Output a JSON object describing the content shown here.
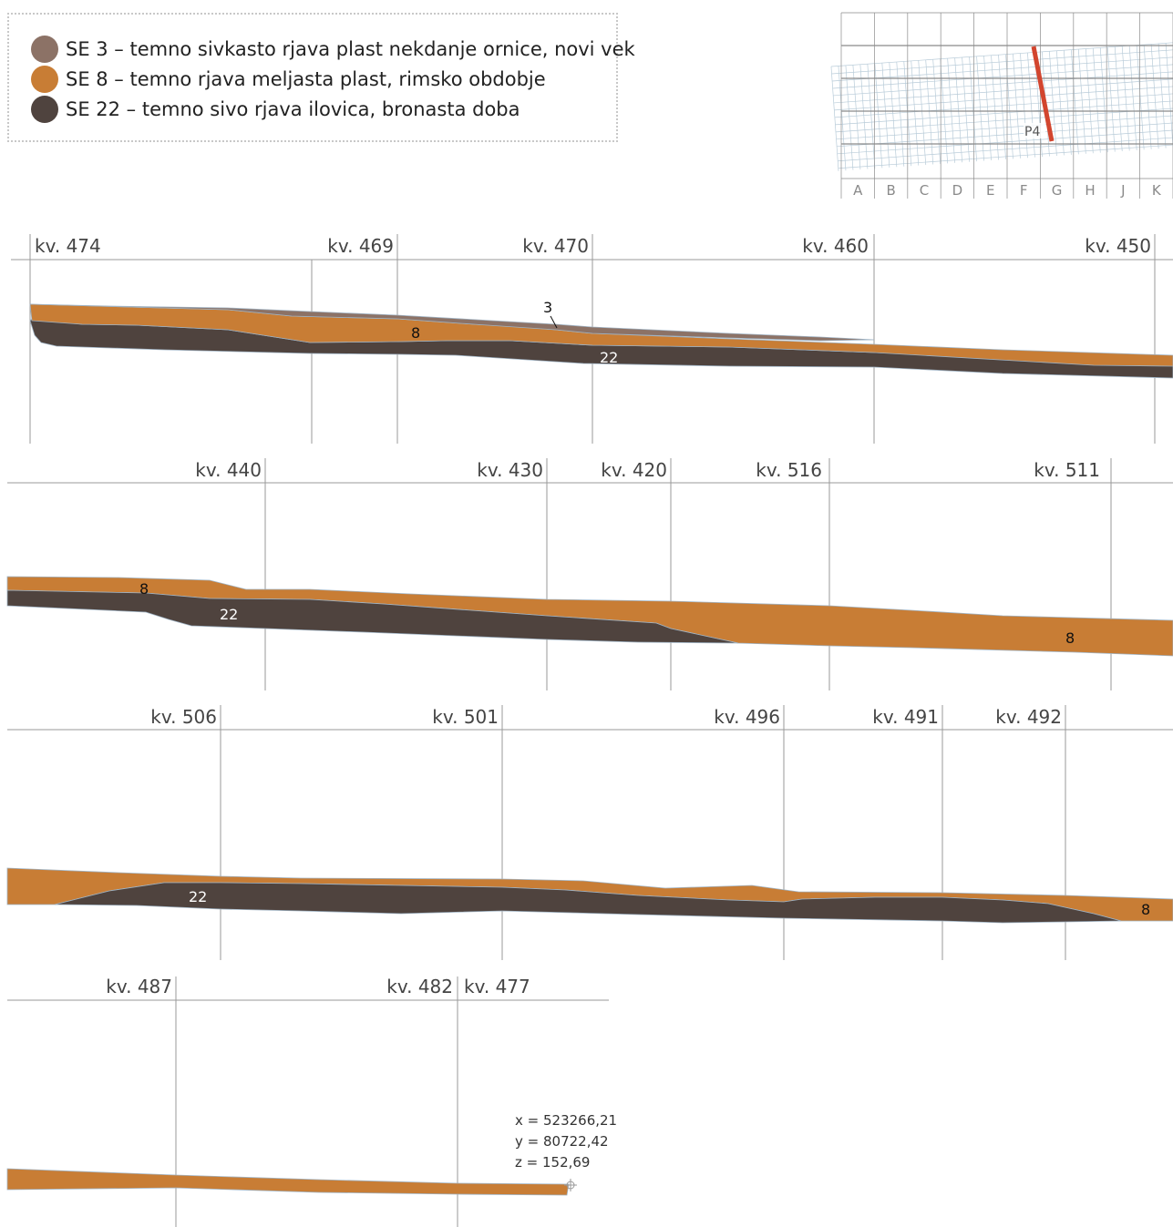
{
  "legend": [
    {
      "label": "SE 3 – temno sivkasto rjava plast nekdanje ornice, novi vek",
      "color": "#8c7266"
    },
    {
      "label": "SE 8 – temno rjava meljasta plast, rimsko obdobje",
      "color": "#c87d35"
    },
    {
      "label": "SE 22 – temno sivo rjava ilovica, bronasta doba",
      "color": "#4f433e"
    }
  ],
  "locator": {
    "columns": [
      "A",
      "B",
      "C",
      "D",
      "E",
      "F",
      "G",
      "H",
      "J",
      "K"
    ],
    "profile_label": "P4",
    "profile_color": "#d2452e"
  },
  "profile": {
    "row1_squares": [
      "kv. 474",
      "kv. 469",
      "kv. 470",
      "kv. 460",
      "kv. 450"
    ],
    "row2_squares": [
      "kv. 440",
      "kv. 430",
      "kv. 420",
      "kv. 516",
      "kv. 511"
    ],
    "row3_squares": [
      "kv. 506",
      "kv. 501",
      "kv. 496",
      "kv. 491",
      "kv. 492"
    ],
    "row4_squares": [
      "kv. 487",
      "kv. 482",
      "kv. 477"
    ],
    "layer_labels": {
      "se3": "3",
      "se8": "8",
      "se22": "22"
    }
  },
  "coordinates": {
    "x": "x = 523266,21",
    "y": "y = 80722,42",
    "z": "z = 152,69"
  }
}
